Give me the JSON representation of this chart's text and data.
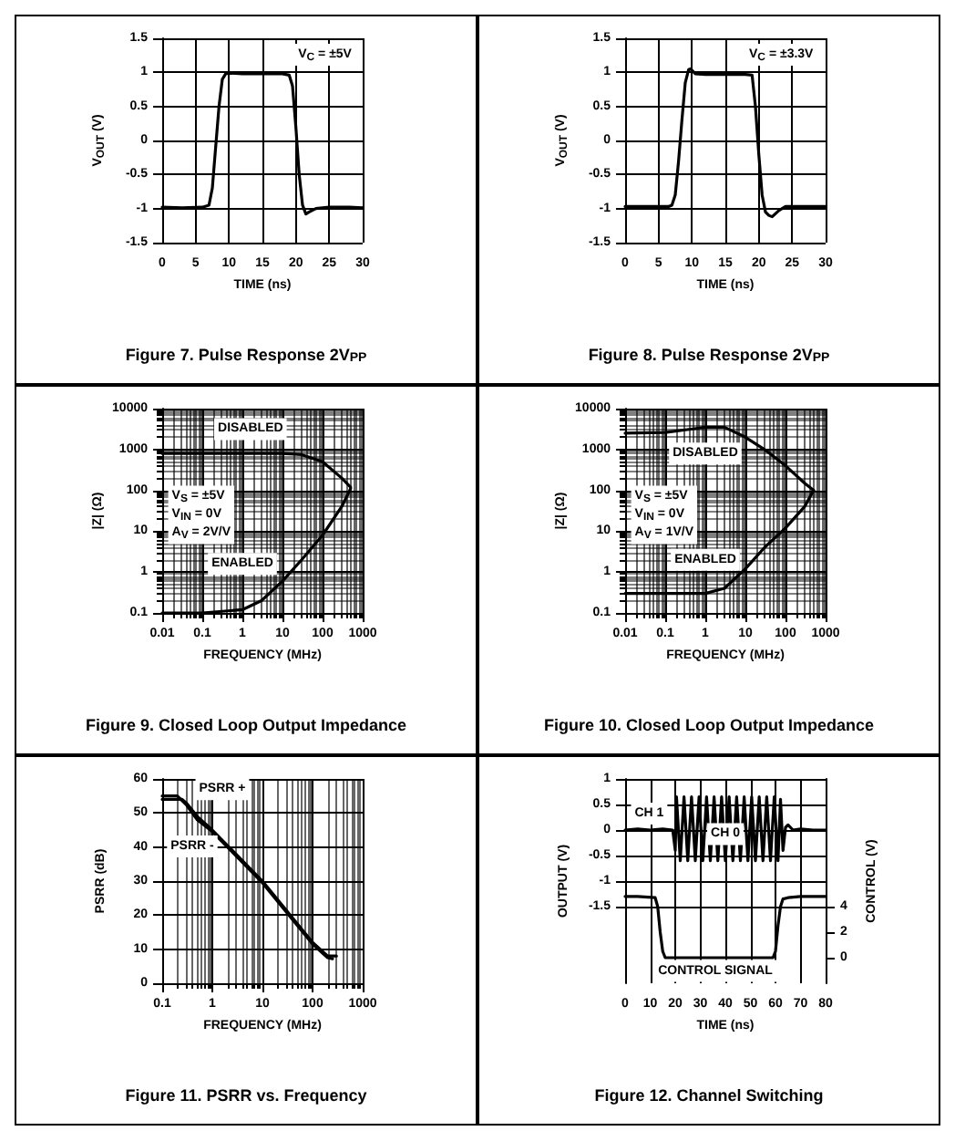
{
  "chart_data": [
    {
      "type": "line",
      "title": "Figure 7. Pulse Response 2V$_{PP}$",
      "xlabel": "TIME (ns)",
      "ylabel": "V$_{OUT}$ (V)",
      "xlim": [
        0,
        30
      ],
      "xticks": [
        0,
        5,
        10,
        15,
        20,
        25,
        30
      ],
      "ylim": [
        -1.5,
        1.5
      ],
      "yticks": [
        -1.5,
        -1,
        -0.5,
        0,
        0.5,
        1,
        1.5
      ],
      "grid": true,
      "annotations": [
        "V$_{C}$ = ±5V"
      ],
      "series": [
        {
          "color": "#000000",
          "x": [
            0,
            3,
            6,
            7,
            7.5,
            8,
            8.5,
            9,
            9.5,
            10,
            12,
            15,
            18,
            19,
            19.5,
            20,
            20.5,
            21,
            21.5,
            22,
            23,
            25,
            28,
            30
          ],
          "values": [
            -0.98,
            -0.99,
            -0.98,
            -0.95,
            -0.7,
            -0.1,
            0.5,
            0.9,
            0.98,
            0.99,
            0.98,
            0.98,
            0.98,
            0.96,
            0.8,
            0.2,
            -0.5,
            -0.95,
            -1.08,
            -1.05,
            -1.0,
            -0.98,
            -0.98,
            -0.99
          ]
        }
      ]
    },
    {
      "type": "line",
      "title": "Figure 8. Pulse Response 2V$_{PP}$",
      "xlabel": "TIME (ns)",
      "ylabel": "V$_{OUT}$ (V)",
      "xlim": [
        0,
        30
      ],
      "xticks": [
        0,
        5,
        10,
        15,
        20,
        25,
        30
      ],
      "ylim": [
        -1.5,
        1.5
      ],
      "yticks": [
        -1.5,
        -1,
        -0.5,
        0,
        0.5,
        1,
        1.5
      ],
      "grid": true,
      "annotations": [
        "V$_{C}$ = ±3.3V"
      ],
      "series": [
        {
          "color": "#000000",
          "x": [
            0,
            3,
            6.5,
            7,
            7.5,
            8,
            8.5,
            9,
            9.5,
            9.8,
            10.5,
            12,
            15,
            18,
            19,
            19.5,
            20,
            20.5,
            21,
            21.5,
            22,
            23,
            24,
            26,
            30
          ],
          "values": [
            -0.97,
            -0.97,
            -0.97,
            -0.95,
            -0.8,
            -0.3,
            0.3,
            0.85,
            1.04,
            1.05,
            0.98,
            0.97,
            0.97,
            0.97,
            0.96,
            0.5,
            -0.2,
            -0.8,
            -1.05,
            -1.1,
            -1.12,
            -1.03,
            -0.97,
            -0.97,
            -0.97
          ]
        }
      ]
    },
    {
      "type": "line",
      "title": "Figure 9. Closed Loop Output Impedance",
      "xlabel": "FREQUENCY (MHz)",
      "ylabel": "|Z| (Ω)",
      "log": "xy",
      "xlim": [
        0.01,
        1000
      ],
      "xticks": [
        0.01,
        0.1,
        1,
        10,
        100,
        1000
      ],
      "ylim": [
        0.1,
        10000
      ],
      "yticks": [
        0.1,
        1,
        10,
        100,
        1000,
        10000
      ],
      "grid": true,
      "annotations": [
        "V$_{S}$ = ±5V\nV$_{IN}$ = 0V\nA$_{V}$ = 2V/V",
        "DISABLED",
        "ENABLED"
      ],
      "series": [
        {
          "color": "#000000",
          "x": [
            0.01,
            0.1,
            1,
            10,
            30,
            100,
            300,
            500
          ],
          "values": [
            800,
            800,
            800,
            800,
            750,
            500,
            200,
            120
          ]
        },
        {
          "color": "#000000",
          "x": [
            0.01,
            0.1,
            1,
            3,
            10,
            30,
            100,
            300,
            500
          ],
          "values": [
            0.1,
            0.1,
            0.12,
            0.2,
            0.6,
            2,
            8,
            40,
            110
          ]
        }
      ]
    },
    {
      "type": "line",
      "title": "Figure 10. Closed Loop Output Impedance",
      "xlabel": "FREQUENCY (MHz)",
      "ylabel": "|Z| (Ω)",
      "log": "xy",
      "xlim": [
        0.01,
        1000
      ],
      "xticks": [
        0.01,
        0.1,
        1,
        10,
        100,
        1000
      ],
      "ylim": [
        0.1,
        10000
      ],
      "yticks": [
        0.1,
        1,
        10,
        100,
        1000,
        10000
      ],
      "grid": true,
      "annotations": [
        "V$_{S}$ = ±5V\nV$_{IN}$ = 0V\nA$_{V}$ = 1V/V",
        "DISABLED",
        "ENABLED"
      ],
      "series": [
        {
          "color": "#000000",
          "x": [
            0.01,
            0.1,
            1,
            3,
            10,
            30,
            100,
            300,
            500
          ],
          "values": [
            2500,
            2600,
            3500,
            3500,
            2000,
            1000,
            400,
            150,
            100
          ]
        },
        {
          "color": "#000000",
          "x": [
            0.01,
            0.1,
            1,
            3,
            10,
            30,
            100,
            300,
            500
          ],
          "values": [
            0.3,
            0.3,
            0.3,
            0.4,
            1.2,
            4,
            12,
            40,
            100
          ]
        }
      ]
    },
    {
      "type": "line",
      "title": "Figure 11. PSRR vs. Frequency",
      "xlabel": "FREQUENCY (MHz)",
      "ylabel": "PSRR (dB)",
      "log": "x",
      "xlim": [
        0.1,
        1000
      ],
      "xticks": [
        0.1,
        1,
        10,
        100,
        1000
      ],
      "ylim": [
        0,
        60
      ],
      "yticks": [
        0,
        10,
        20,
        30,
        40,
        50,
        60
      ],
      "grid": true,
      "annotations": [
        "PSRR +",
        "PSRR -"
      ],
      "series": [
        {
          "color": "#000000",
          "x": [
            0.1,
            0.25,
            0.3,
            0.5,
            1,
            10,
            100,
            200,
            300
          ],
          "values": [
            54,
            54,
            53,
            49,
            45,
            30,
            12,
            8,
            8
          ]
        },
        {
          "color": "#000000",
          "x": [
            0.1,
            0.2,
            0.3,
            0.5,
            1,
            10,
            100,
            200,
            250
          ],
          "values": [
            55,
            55,
            52.5,
            48,
            44.5,
            29.5,
            11.5,
            7.5,
            7.2
          ]
        }
      ]
    },
    {
      "type": "line",
      "title": "Figure 12. Channel Switching",
      "xlabel": "TIME (ns)",
      "ylabel": "OUTPUT (V)",
      "y2label": "CONTROL (V)",
      "xlim": [
        0,
        80
      ],
      "xticks": [
        0,
        10,
        20,
        30,
        40,
        50,
        60,
        70,
        80
      ],
      "ylim": [
        -3,
        1
      ],
      "yticks": [
        -1.5,
        -1,
        -0.5,
        0,
        0.5,
        1
      ],
      "y2lim": [
        -2,
        14
      ],
      "y2ticks": [
        0,
        2,
        4
      ],
      "grid": true,
      "annotations": [
        "CH 1",
        "CH 0",
        "CONTROL SIGNAL"
      ],
      "series": [
        {
          "color": "#000000",
          "x": [
            0,
            5,
            10,
            15,
            19,
            20,
            20.5,
            22,
            23.5,
            25,
            26.5,
            28,
            29.5,
            31,
            32.5,
            34,
            35.5,
            37,
            38.5,
            40,
            41.5,
            43,
            44.5,
            46,
            47.5,
            49,
            50.5,
            52,
            53.5,
            55,
            56.5,
            58,
            59.5,
            61,
            62,
            63,
            64,
            65,
            67,
            70,
            75,
            80
          ],
          "values": [
            0,
            0.02,
            0,
            0.02,
            0,
            -0.4,
            0.65,
            -0.6,
            0.65,
            -0.6,
            0.65,
            -0.6,
            0.65,
            -0.6,
            0.65,
            -0.6,
            0.65,
            -0.6,
            0.65,
            -0.6,
            0.65,
            -0.6,
            0.65,
            -0.6,
            0.65,
            -0.6,
            0.65,
            -0.6,
            0.65,
            -0.6,
            0.65,
            -0.6,
            0.65,
            -0.6,
            0.6,
            -0.4,
            0.05,
            0.1,
            0,
            0.02,
            0,
            0
          ]
        },
        {
          "color": "#000000",
          "axis": "y2",
          "x": [
            0,
            5,
            12,
            13,
            14,
            15,
            16,
            20,
            40,
            59,
            60,
            61,
            62,
            63,
            65,
            70,
            80
          ],
          "values": [
            4.8,
            4.8,
            4.7,
            4,
            2,
            0.5,
            0,
            0,
            0,
            0,
            0.5,
            2.5,
            4,
            4.6,
            4.7,
            4.8,
            4.8
          ]
        }
      ]
    }
  ]
}
